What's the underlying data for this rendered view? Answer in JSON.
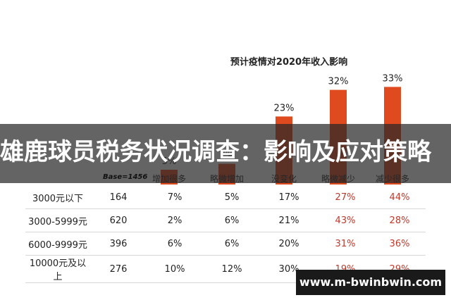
{
  "chart_data": {
    "type": "bar",
    "title": "预计疫情对2020年收入影响",
    "categories": [
      "增加很多",
      "略微增加",
      "没变化",
      "略微减少",
      "减少很多"
    ],
    "series": [
      {
        "values": [
          5,
          7,
          23,
          32,
          33
        ]
      }
    ],
    "value_labels": [
      "5%",
      "7%",
      "23%",
      "32%",
      "33%"
    ],
    "bar_color": "#e04a1f",
    "ylim": [
      0,
      40
    ],
    "grid": false,
    "base_label": "Base=1456",
    "table": {
      "rows": [
        {
          "label": "3000元以下",
          "base": "164",
          "values": [
            "7%",
            "5%",
            "17%",
            "27%",
            "44%"
          ]
        },
        {
          "label": "3000-5999元",
          "base": "620",
          "values": [
            "2%",
            "6%",
            "21%",
            "43%",
            "28%"
          ]
        },
        {
          "label": "6000-9999元",
          "base": "396",
          "values": [
            "6%",
            "6%",
            "20%",
            "31%",
            "36%"
          ]
        },
        {
          "label": "10000元及以上",
          "base": "276",
          "values": [
            "10%",
            "12%",
            "30%",
            "19%",
            "29%"
          ]
        }
      ]
    }
  },
  "banner": {
    "title": "雄鹿球员税务状况调查：影响及应对策略"
  },
  "watermark": {
    "text": "www.m-bwinbwin.com"
  },
  "colors": {
    "negative_text": "#c0392b",
    "banner_bg": "#333333"
  }
}
